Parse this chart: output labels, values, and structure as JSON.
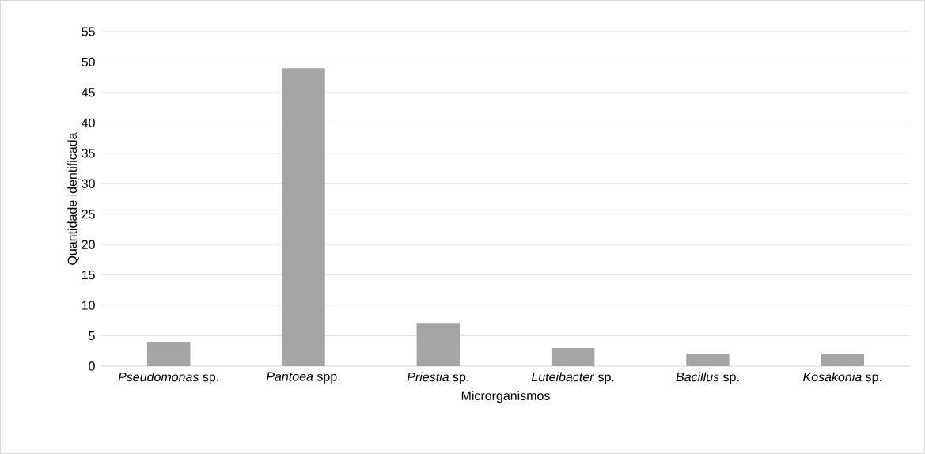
{
  "chart_data": {
    "type": "bar",
    "xlabel": "Microrganismos",
    "ylabel": "Quantidade identificada",
    "categories": [
      "*Pseudomonas* sp.",
      "*Pantoea* spp.",
      "*Priestia* sp.",
      "*Luteibacter* sp.",
      "*Bacillus* sp.",
      "*Kosakonia* sp."
    ],
    "values": [
      4,
      49,
      7,
      3,
      2,
      2
    ],
    "color": "#a5a5a5",
    "ylim": [
      0,
      55
    ],
    "yticks": [
      0,
      5,
      10,
      15,
      20,
      25,
      30,
      35,
      40,
      45,
      50,
      55
    ],
    "grid": "y"
  }
}
